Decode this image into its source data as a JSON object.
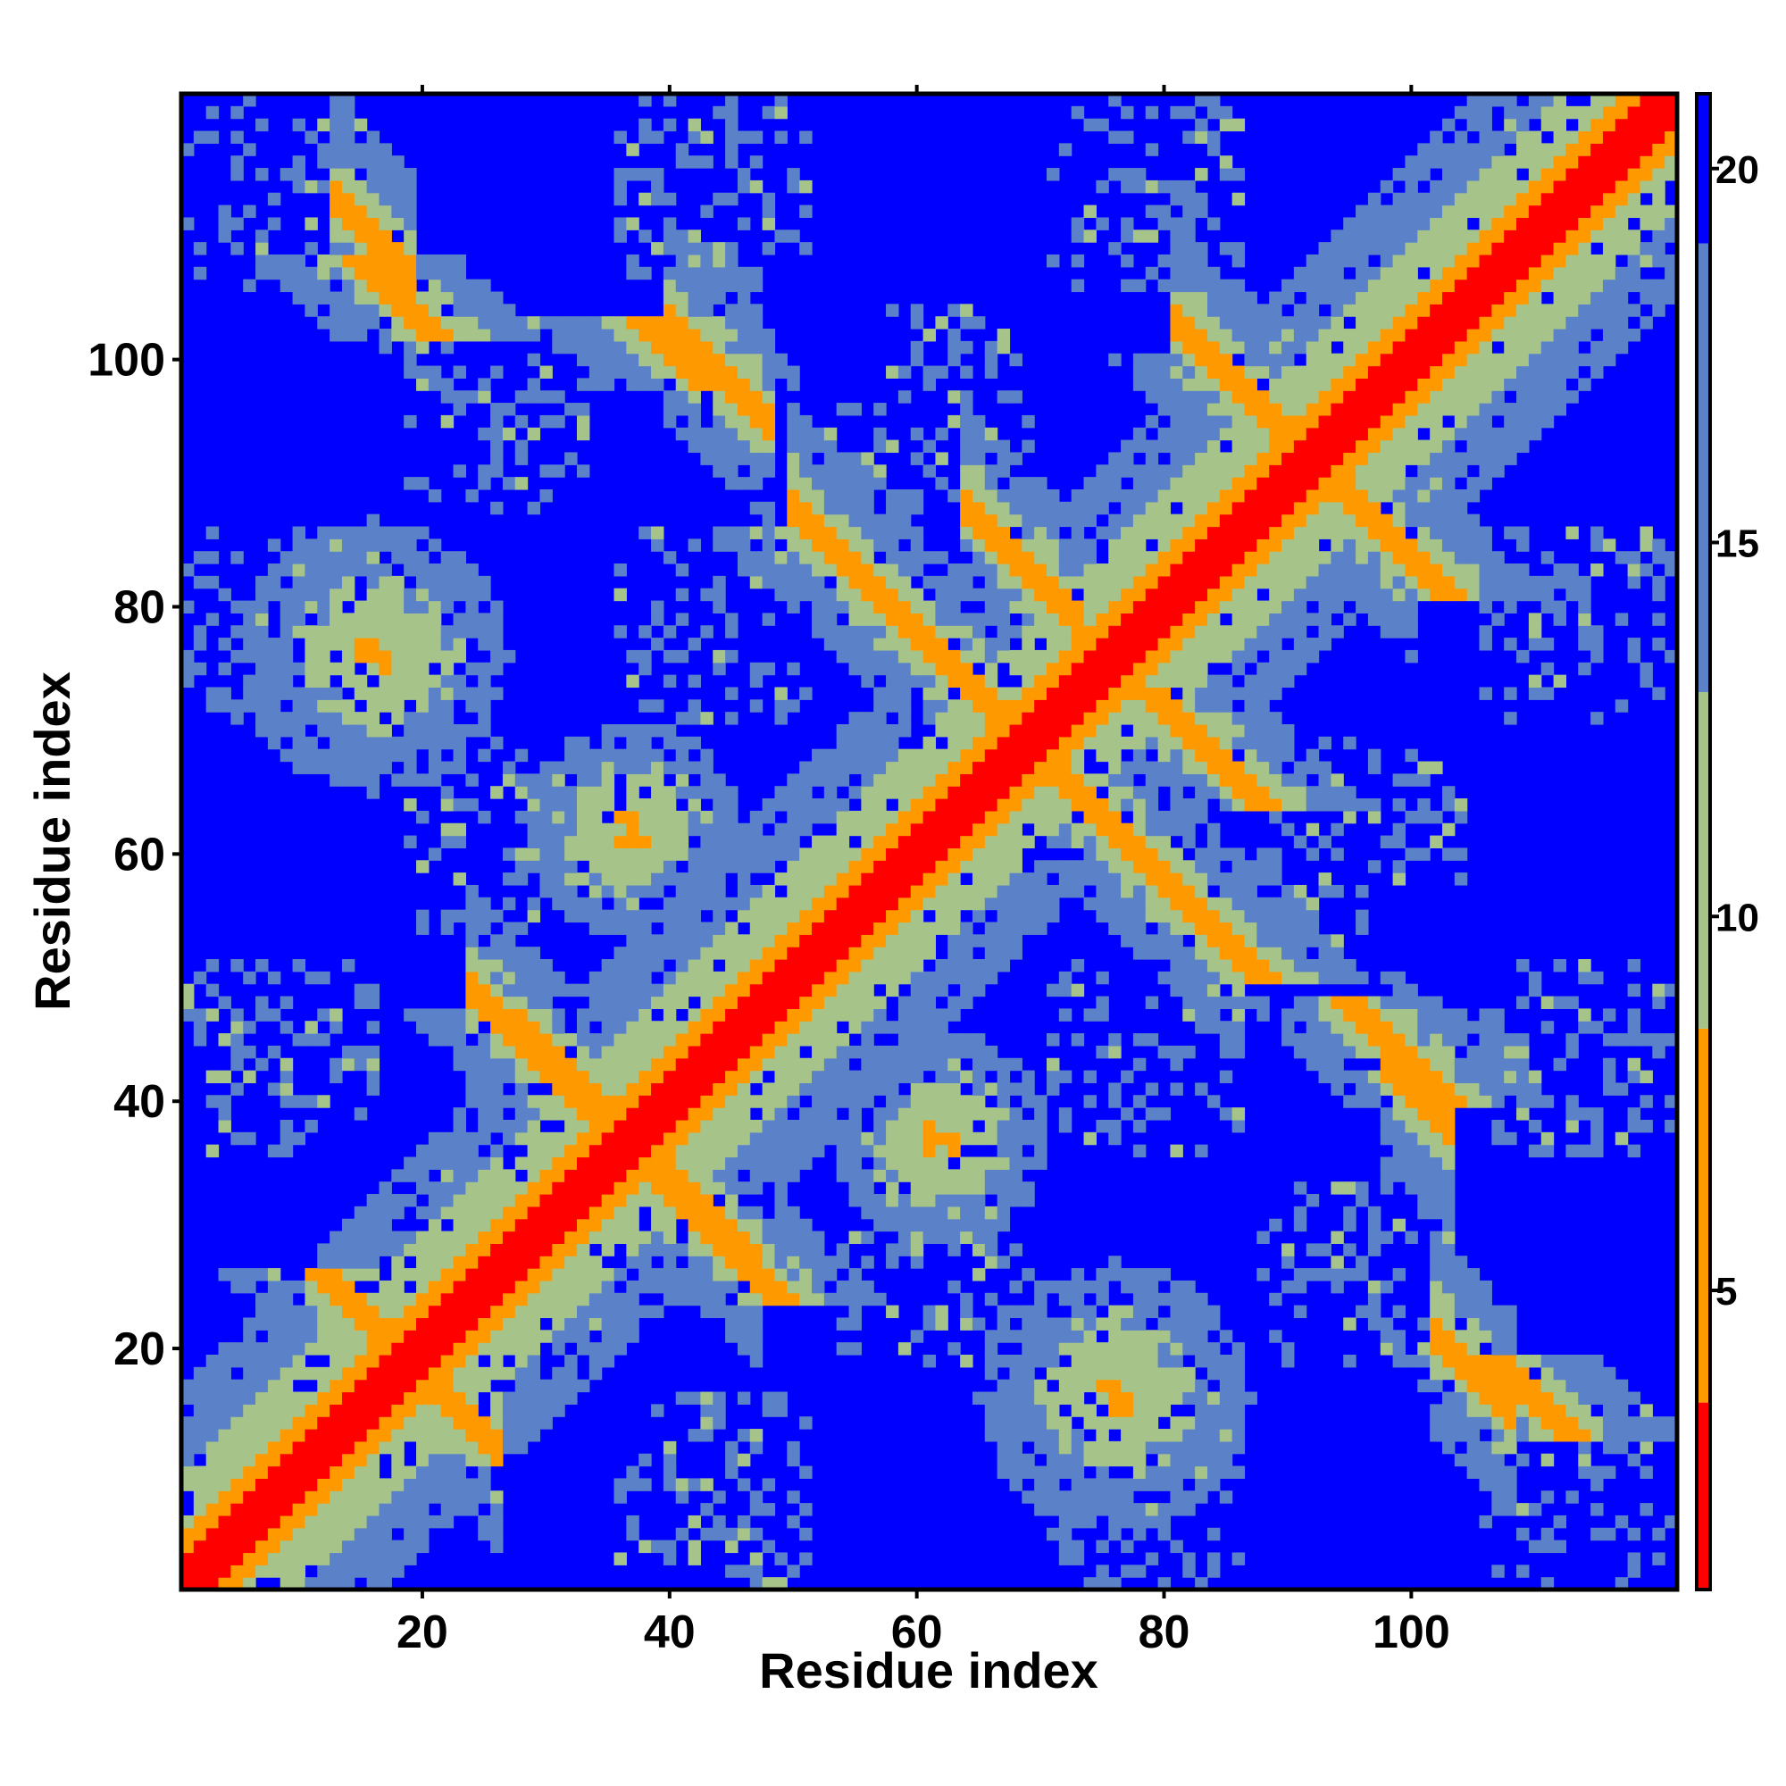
{
  "chart_data": {
    "type": "heatmap",
    "title": "",
    "xlabel": "Residue index",
    "ylabel": "Residue index",
    "x_range": [
      1,
      121
    ],
    "y_range": [
      1,
      121
    ],
    "x_ticks": [
      20,
      40,
      60,
      80,
      100
    ],
    "y_ticks": [
      20,
      40,
      60,
      80,
      100
    ],
    "colorbar": {
      "range": [
        1,
        21
      ],
      "ticks": [
        5,
        10,
        15,
        20
      ],
      "colors": {
        "low": "#ff0000",
        "mid_low": "#ff9900",
        "mid": "#a6c48a",
        "mid_high": "#5b82c8",
        "high": "#0000ff"
      },
      "boundaries": [
        3.5,
        8.5,
        13,
        19
      ]
    },
    "grid": false,
    "legend": "colorbar-right",
    "features": {
      "main_diagonal": {
        "width": 2.2
      },
      "anti_diagonal_bands": [
        {
          "i_range": [
            13,
            19
          ],
          "j_sum": 126
        },
        {
          "i_range": [
            18,
            26
          ],
          "j_sum": 38
        },
        {
          "i_range": [
            24,
            35
          ],
          "j_sum": 73
        },
        {
          "i_range": [
            37,
            47
          ],
          "j_sum": 74
        },
        {
          "i_range": [
            40,
            48
          ],
          "j_sum": 143
        },
        {
          "i_range": [
            50,
            76
          ],
          "j_sum": 138
        },
        {
          "i_range": [
            64,
            73
          ],
          "j_sum": 152
        },
        {
          "i_range": [
            72,
            86
          ],
          "j_sum": 138
        },
        {
          "i_range": [
            81,
            88
          ],
          "j_sum": 184
        },
        {
          "i_range": [
            91,
            100
          ],
          "j_sum": 184
        },
        {
          "i_range": [
            98,
            103
          ],
          "j_sum": 141
        },
        {
          "i_range": [
            102,
            108
          ],
          "j_sum": 123
        }
      ],
      "blob_clusters": [
        {
          "center": [
            16,
            76
          ],
          "radius": 5
        },
        {
          "center": [
            76,
            18
          ],
          "radius": 5
        },
        {
          "center": [
            37,
            62
          ],
          "radius": 4
        },
        {
          "center": [
            62,
            37
          ],
          "radius": 4
        }
      ]
    }
  }
}
